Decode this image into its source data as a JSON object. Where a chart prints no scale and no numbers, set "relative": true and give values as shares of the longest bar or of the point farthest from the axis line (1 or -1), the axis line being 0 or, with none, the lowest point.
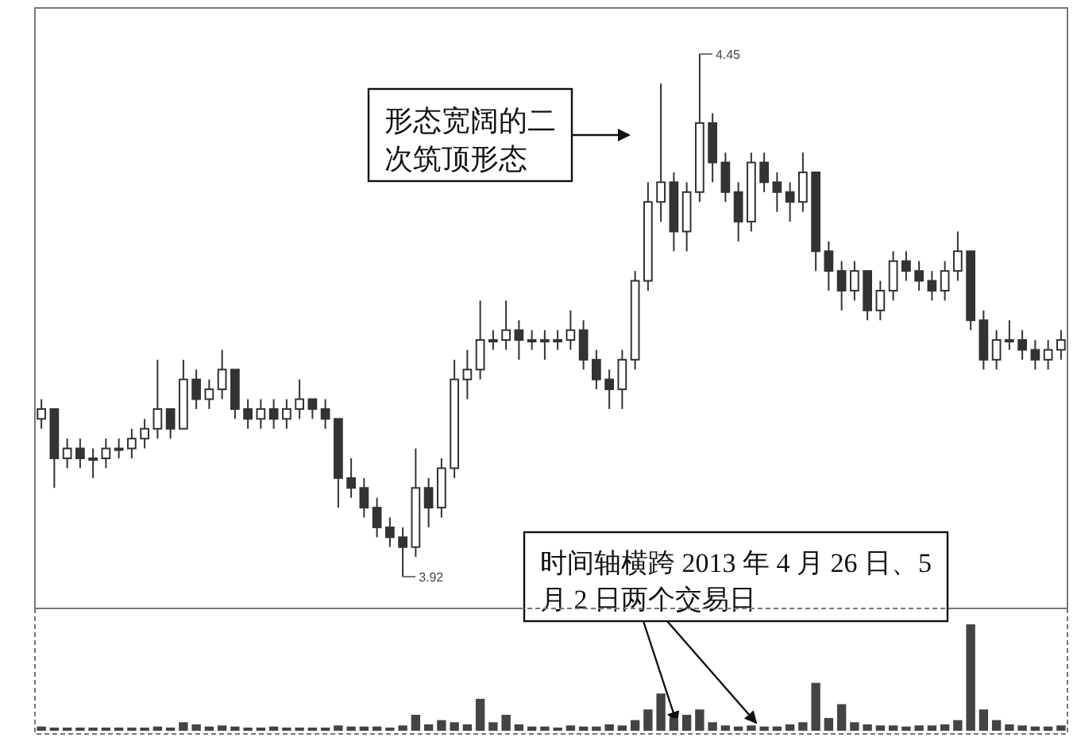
{
  "chart_data": [
    {
      "type": "candlestick",
      "relative": false,
      "color": "#333333",
      "categories": [
        null,
        null,
        null,
        null,
        null,
        null,
        null,
        null,
        null,
        null,
        null,
        null,
        null,
        null,
        null,
        null,
        null,
        null,
        null,
        null,
        null,
        null,
        null,
        null,
        null,
        null,
        null,
        null,
        null,
        null,
        null,
        null,
        null,
        null,
        null,
        null,
        null,
        null,
        null,
        null,
        null,
        null,
        null,
        null,
        null,
        null,
        null,
        null,
        null,
        null,
        null,
        null,
        null,
        null,
        null,
        null,
        null,
        null,
        null,
        null,
        null,
        null,
        null,
        null,
        null,
        null,
        null,
        null,
        null,
        null,
        null,
        null,
        null,
        null,
        null,
        null,
        null,
        null,
        null,
        null
      ],
      "ohlc": [
        [
          4.08,
          4.1,
          4.07,
          4.09
        ],
        [
          4.09,
          4.09,
          4.01,
          4.04
        ],
        [
          4.04,
          4.06,
          4.03,
          4.05
        ],
        [
          4.05,
          4.06,
          4.03,
          4.04
        ],
        [
          4.04,
          4.05,
          4.02,
          4.04
        ],
        [
          4.04,
          4.06,
          4.03,
          4.05
        ],
        [
          4.05,
          4.06,
          4.04,
          4.05
        ],
        [
          4.05,
          4.07,
          4.04,
          4.06
        ],
        [
          4.06,
          4.08,
          4.05,
          4.07
        ],
        [
          4.07,
          4.14,
          4.06,
          4.09
        ],
        [
          4.09,
          4.09,
          4.06,
          4.07
        ],
        [
          4.07,
          4.14,
          4.07,
          4.12
        ],
        [
          4.12,
          4.13,
          4.09,
          4.1
        ],
        [
          4.1,
          4.12,
          4.09,
          4.11
        ],
        [
          4.11,
          4.15,
          4.1,
          4.13
        ],
        [
          4.13,
          4.13,
          4.08,
          4.09
        ],
        [
          4.09,
          4.1,
          4.07,
          4.08
        ],
        [
          4.08,
          4.1,
          4.07,
          4.09
        ],
        [
          4.09,
          4.1,
          4.07,
          4.08
        ],
        [
          4.08,
          4.1,
          4.07,
          4.09
        ],
        [
          4.09,
          4.12,
          4.08,
          4.1
        ],
        [
          4.1,
          4.1,
          4.08,
          4.09
        ],
        [
          4.09,
          4.1,
          4.07,
          4.08
        ],
        [
          4.08,
          4.08,
          3.99,
          4.02
        ],
        [
          4.02,
          4.04,
          4.0,
          4.01
        ],
        [
          4.01,
          4.02,
          3.98,
          3.99
        ],
        [
          3.99,
          4.0,
          3.96,
          3.97
        ],
        [
          3.97,
          3.98,
          3.95,
          3.96
        ],
        [
          3.96,
          3.97,
          3.92,
          3.95
        ],
        [
          3.95,
          4.05,
          3.94,
          4.01
        ],
        [
          4.01,
          4.02,
          3.97,
          3.99
        ],
        [
          3.99,
          4.04,
          3.98,
          4.03
        ],
        [
          4.03,
          4.14,
          4.02,
          4.12
        ],
        [
          4.12,
          4.15,
          4.1,
          4.13
        ],
        [
          4.13,
          4.2,
          4.12,
          4.16
        ],
        [
          4.16,
          4.17,
          4.15,
          4.16
        ],
        [
          4.16,
          4.2,
          4.15,
          4.17
        ],
        [
          4.17,
          4.18,
          4.14,
          4.16
        ],
        [
          4.16,
          4.17,
          4.15,
          4.16
        ],
        [
          4.16,
          4.17,
          4.14,
          4.16
        ],
        [
          4.16,
          4.17,
          4.15,
          4.16
        ],
        [
          4.16,
          4.19,
          4.15,
          4.17
        ],
        [
          4.17,
          4.18,
          4.13,
          4.14
        ],
        [
          4.14,
          4.15,
          4.11,
          4.12
        ],
        [
          4.12,
          4.13,
          4.09,
          4.11
        ],
        [
          4.11,
          4.15,
          4.09,
          4.14
        ],
        [
          4.14,
          4.23,
          4.13,
          4.22
        ],
        [
          4.22,
          4.32,
          4.21,
          4.3
        ],
        [
          4.3,
          4.42,
          4.28,
          4.32
        ],
        [
          4.32,
          4.33,
          4.25,
          4.27
        ],
        [
          4.27,
          4.32,
          4.25,
          4.31
        ],
        [
          4.31,
          4.45,
          4.3,
          4.38
        ],
        [
          4.38,
          4.39,
          4.32,
          4.34
        ],
        [
          4.34,
          4.35,
          4.3,
          4.31
        ],
        [
          4.31,
          4.32,
          4.26,
          4.28
        ],
        [
          4.28,
          4.35,
          4.27,
          4.34
        ],
        [
          4.34,
          4.35,
          4.31,
          4.32
        ],
        [
          4.32,
          4.33,
          4.29,
          4.31
        ],
        [
          4.31,
          4.32,
          4.28,
          4.3
        ],
        [
          4.3,
          4.35,
          4.29,
          4.33
        ],
        [
          4.33,
          4.33,
          4.23,
          4.25
        ],
        [
          4.25,
          4.26,
          4.21,
          4.23
        ],
        [
          4.23,
          4.24,
          4.19,
          4.21
        ],
        [
          4.21,
          4.24,
          4.2,
          4.23
        ],
        [
          4.23,
          4.23,
          4.18,
          4.19
        ],
        [
          4.19,
          4.22,
          4.18,
          4.21
        ],
        [
          4.21,
          4.25,
          4.2,
          4.24
        ],
        [
          4.24,
          4.25,
          4.22,
          4.23
        ],
        [
          4.23,
          4.24,
          4.21,
          4.22
        ],
        [
          4.22,
          4.23,
          4.2,
          4.21
        ],
        [
          4.21,
          4.24,
          4.2,
          4.23
        ],
        [
          4.23,
          4.27,
          4.22,
          4.25
        ],
        [
          4.25,
          4.25,
          4.17,
          4.18
        ],
        [
          4.18,
          4.19,
          4.13,
          4.14
        ],
        [
          4.14,
          4.17,
          4.13,
          4.16
        ],
        [
          4.16,
          4.18,
          4.15,
          4.16
        ],
        [
          4.16,
          4.17,
          4.14,
          4.15
        ],
        [
          4.15,
          4.16,
          4.13,
          4.14
        ],
        [
          4.14,
          4.16,
          4.13,
          4.15
        ],
        [
          4.15,
          4.17,
          4.14,
          4.16
        ]
      ],
      "annotations": [
        "形态宽阔的二次筑顶形态",
        "时间轴横跨 2013 年 4 月 26 日、5 月 2 日两个交易日",
        "4.45",
        "3.92"
      ]
    },
    {
      "type": "bar",
      "relative": true,
      "color": "#444444",
      "categories": [
        null,
        null,
        null,
        null,
        null,
        null,
        null,
        null,
        null,
        null,
        null,
        null,
        null,
        null,
        null,
        null,
        null,
        null,
        null,
        null,
        null,
        null,
        null,
        null,
        null,
        null,
        null,
        null,
        null,
        null,
        null,
        null,
        null,
        null,
        null,
        null,
        null,
        null,
        null,
        null,
        null,
        null,
        null,
        null,
        null,
        null,
        null,
        null,
        null,
        null,
        null,
        null,
        null,
        null,
        null,
        null,
        null,
        null,
        null,
        null,
        null,
        null,
        null,
        null,
        null,
        null,
        null,
        null,
        null,
        null,
        null,
        null,
        null,
        null,
        null,
        null,
        null,
        null,
        null,
        null
      ],
      "values": [
        0.04,
        0.03,
        0.03,
        0.03,
        0.03,
        0.03,
        0.03,
        0.03,
        0.03,
        0.04,
        0.03,
        0.08,
        0.06,
        0.04,
        0.05,
        0.04,
        0.03,
        0.03,
        0.04,
        0.03,
        0.03,
        0.03,
        0.03,
        0.05,
        0.04,
        0.04,
        0.04,
        0.03,
        0.05,
        0.15,
        0.06,
        0.1,
        0.08,
        0.06,
        0.3,
        0.08,
        0.15,
        0.06,
        0.04,
        0.04,
        0.03,
        0.05,
        0.04,
        0.04,
        0.06,
        0.05,
        0.1,
        0.2,
        0.35,
        0.12,
        0.15,
        0.2,
        0.08,
        0.05,
        0.04,
        0.05,
        0.04,
        0.04,
        0.06,
        0.08,
        0.45,
        0.12,
        0.25,
        0.08,
        0.06,
        0.05,
        0.05,
        0.04,
        0.05,
        0.05,
        0.06,
        0.1,
        1,
        0.2,
        0.1,
        0.06,
        0.05,
        0.04,
        0.04,
        0.05
      ]
    }
  ]
}
